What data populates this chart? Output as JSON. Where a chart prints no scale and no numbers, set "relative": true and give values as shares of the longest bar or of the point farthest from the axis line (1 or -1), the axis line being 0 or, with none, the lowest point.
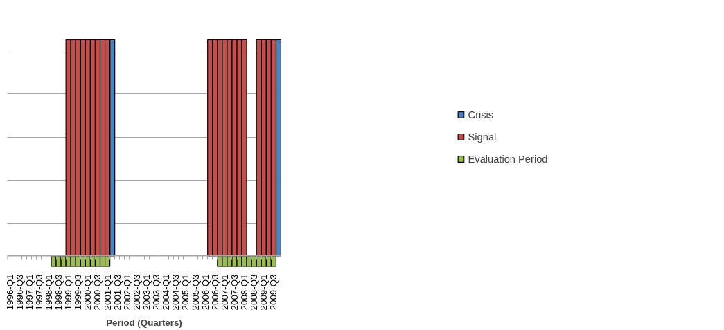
{
  "chart_data": {
    "type": "bar",
    "relative": true,
    "xlabel": "Period (Quarters)",
    "categories": [
      "1996-Q1",
      null,
      "1996-Q3",
      null,
      "1997-Q1",
      null,
      "1997-Q3",
      null,
      "1998-Q1",
      null,
      "1998-Q3",
      null,
      "1999-Q1",
      null,
      "1999-Q3",
      null,
      "2000-Q1",
      null,
      "2000-Q3",
      null,
      "2001-Q1",
      null,
      "2001-Q3",
      null,
      "2002-Q1",
      null,
      "2002-Q3",
      null,
      "2003-Q1",
      null,
      "2003-Q3",
      null,
      "2004-Q1",
      null,
      "2004-Q3",
      null,
      "2005-Q1",
      null,
      "2005-Q3",
      null,
      "2006-Q1",
      null,
      "2006-Q3",
      null,
      "2007-Q1",
      null,
      "2007-Q3",
      null,
      "2008-Q1",
      null,
      "2008-Q3",
      null,
      "2009-Q1",
      null,
      "2009-Q3",
      null
    ],
    "series": [
      {
        "name": "Crisis",
        "color": "#4f81bd",
        "values": [
          null,
          null,
          null,
          null,
          null,
          null,
          null,
          null,
          null,
          null,
          null,
          null,
          null,
          null,
          null,
          null,
          null,
          null,
          null,
          null,
          null,
          1,
          null,
          null,
          null,
          null,
          null,
          null,
          null,
          null,
          null,
          null,
          null,
          null,
          null,
          null,
          null,
          null,
          null,
          null,
          null,
          null,
          null,
          null,
          null,
          null,
          null,
          null,
          null,
          null,
          null,
          null,
          null,
          null,
          null,
          1
        ]
      },
      {
        "name": "Signal",
        "color": "#c0504d",
        "values": [
          null,
          null,
          null,
          null,
          null,
          null,
          null,
          null,
          null,
          null,
          null,
          null,
          1,
          1,
          1,
          1,
          1,
          1,
          1,
          1,
          1,
          null,
          null,
          null,
          null,
          null,
          null,
          null,
          null,
          null,
          null,
          null,
          null,
          null,
          null,
          null,
          null,
          null,
          null,
          null,
          null,
          1,
          1,
          1,
          1,
          1,
          1,
          1,
          1,
          null,
          null,
          1,
          1,
          1,
          1,
          null
        ]
      },
      {
        "name": "Evaluation Period",
        "color": "#9bbb59",
        "values": [
          null,
          null,
          null,
          null,
          null,
          null,
          null,
          null,
          null,
          -0.05,
          -0.05,
          -0.05,
          -0.05,
          -0.05,
          -0.05,
          -0.05,
          -0.05,
          -0.05,
          -0.05,
          -0.05,
          -0.05,
          null,
          null,
          null,
          null,
          null,
          null,
          null,
          null,
          null,
          null,
          null,
          null,
          null,
          null,
          null,
          null,
          null,
          null,
          null,
          null,
          null,
          null,
          -0.05,
          -0.05,
          -0.05,
          -0.05,
          -0.05,
          -0.05,
          -0.05,
          -0.05,
          -0.05,
          -0.05,
          -0.05,
          -0.05,
          null
        ]
      }
    ],
    "grid": "y",
    "legend": "right"
  }
}
